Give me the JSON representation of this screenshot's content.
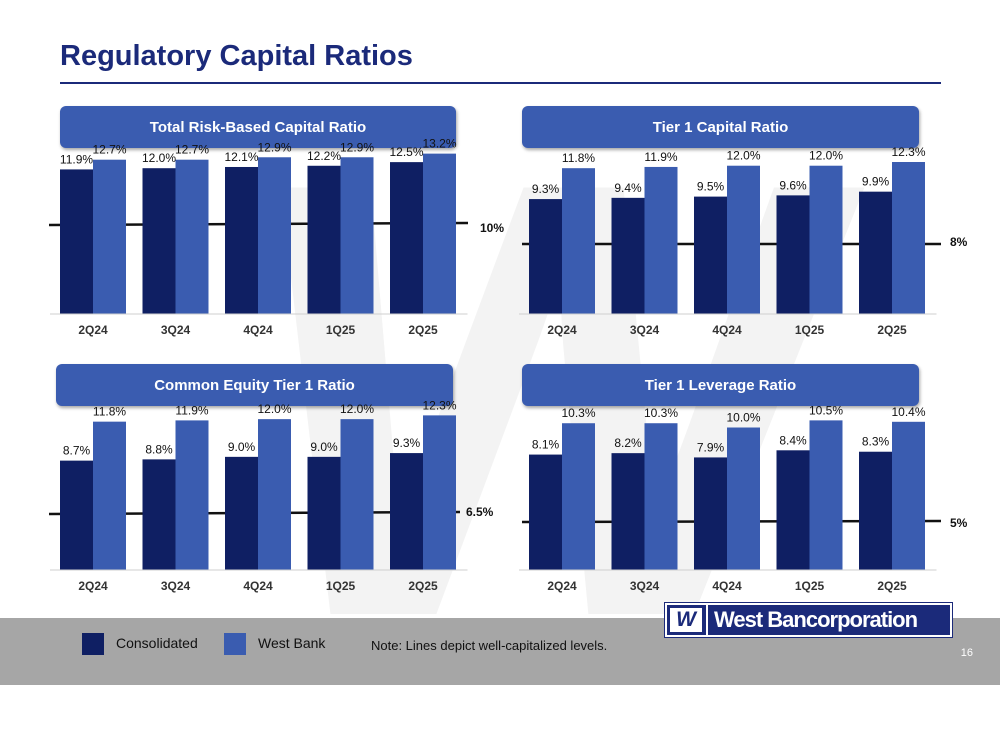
{
  "page_title": "Regulatory Capital Ratios",
  "watermark": "W",
  "colors": {
    "consolidated": "#0f1f63",
    "west_bank": "#3a5cb0",
    "title": "#1b2a7a",
    "footer": "#a6a6a6"
  },
  "chart_data": [
    {
      "type": "bar",
      "title": "Total Risk-Based Capital Ratio",
      "categories": [
        "2Q24",
        "3Q24",
        "4Q24",
        "1Q25",
        "2Q25"
      ],
      "series": [
        {
          "name": "Consolidated",
          "values": [
            11.9,
            12.0,
            12.1,
            12.2,
            12.5
          ],
          "labels": [
            "11.9%",
            "12.0%",
            "12.1%",
            "12.2%",
            "12.5%"
          ]
        },
        {
          "name": "West Bank",
          "values": [
            12.7,
            12.7,
            12.9,
            12.9,
            13.2
          ],
          "labels": [
            "12.7%",
            "12.7%",
            "12.9%",
            "12.9%",
            "13.2%"
          ]
        }
      ],
      "reference_line": {
        "value": 10,
        "label": "10%"
      },
      "ylim": [
        0,
        20
      ]
    },
    {
      "type": "bar",
      "title": "Tier 1 Capital Ratio",
      "categories": [
        "2Q24",
        "3Q24",
        "4Q24",
        "1Q25",
        "2Q25"
      ],
      "series": [
        {
          "name": "Consolidated",
          "values": [
            9.3,
            9.4,
            9.5,
            9.6,
            9.9
          ],
          "labels": [
            "9.3%",
            "9.4%",
            "9.5%",
            "9.6%",
            "9.9%"
          ]
        },
        {
          "name": "West Bank",
          "values": [
            11.8,
            11.9,
            12.0,
            12.0,
            12.3
          ],
          "labels": [
            "11.8%",
            "11.9%",
            "12.0%",
            "12.0%",
            "12.3%"
          ]
        }
      ],
      "reference_line": {
        "value": 8,
        "label": "8%"
      },
      "ylim": [
        0,
        14
      ]
    },
    {
      "type": "bar",
      "title": "Common Equity Tier 1 Ratio",
      "categories": [
        "2Q24",
        "3Q24",
        "4Q24",
        "1Q25",
        "2Q25"
      ],
      "series": [
        {
          "name": "Consolidated",
          "values": [
            8.7,
            8.8,
            9.0,
            9.0,
            9.3
          ],
          "labels": [
            "8.7%",
            "8.8%",
            "9.0%",
            "9.0%",
            "9.3%"
          ]
        },
        {
          "name": "West Bank",
          "values": [
            11.8,
            11.9,
            12.0,
            12.0,
            12.3
          ],
          "labels": [
            "11.8%",
            "11.9%",
            "12.0%",
            "12.0%",
            "12.3%"
          ]
        }
      ],
      "reference_line": {
        "value": 6.5,
        "label": "6.5%"
      },
      "ylim": [
        0,
        14
      ]
    },
    {
      "type": "bar",
      "title": "Tier 1 Leverage Ratio",
      "categories": [
        "2Q24",
        "3Q24",
        "4Q24",
        "1Q25",
        "2Q25"
      ],
      "series": [
        {
          "name": "Consolidated",
          "values": [
            8.1,
            8.2,
            7.9,
            8.4,
            8.3
          ],
          "labels": [
            "8.1%",
            "8.2%",
            "7.9%",
            "8.4%",
            "8.3%"
          ]
        },
        {
          "name": "West Bank",
          "values": [
            10.3,
            10.3,
            10.0,
            10.5,
            10.4
          ],
          "labels": [
            "10.3%",
            "10.3%",
            "10.0%",
            "10.5%",
            "10.4%"
          ]
        }
      ],
      "reference_line": {
        "value": 5,
        "label": "5%"
      },
      "ylim": [
        0,
        12
      ]
    }
  ],
  "legend": {
    "consolidated": "Consolidated",
    "west_bank": "West Bank"
  },
  "note": "Note: Lines depict well-capitalized levels.",
  "logo": {
    "mark": "W",
    "text": "West Bancorporation"
  },
  "page_number": "16"
}
